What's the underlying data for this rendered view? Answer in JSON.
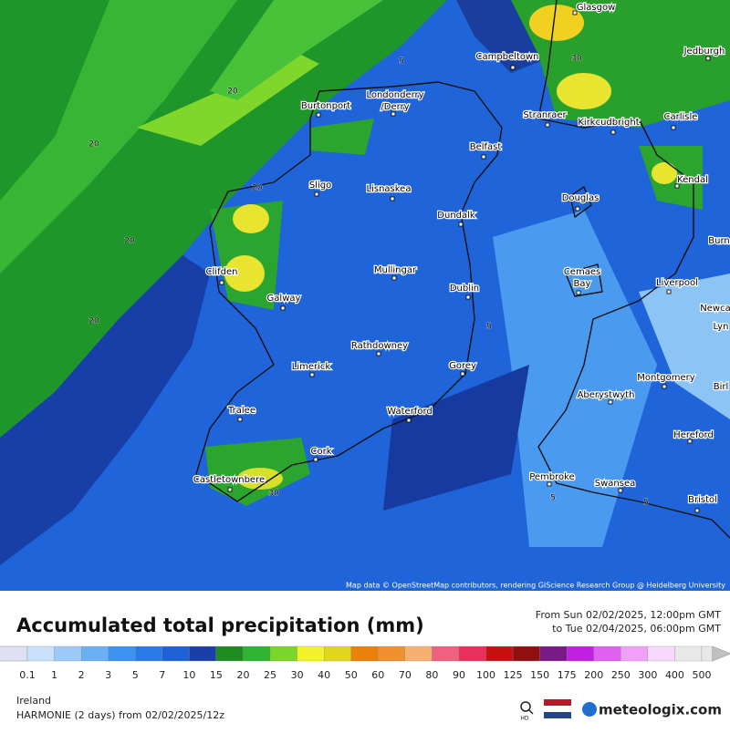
{
  "header": {
    "title": "Accumulated total precipitation (mm)",
    "period_from": "From Sun 02/02/2025, 12:00pm GMT",
    "period_to": "to Tue 02/04/2025, 06:00pm GMT"
  },
  "map": {
    "places": [
      "Glasgow",
      "Campbeltown",
      "Jedburgh",
      "Londonderry",
      "/Derry",
      "Burtonport",
      "Stranraer",
      "Kirkcudbright",
      "Carlisle",
      "Belfast",
      "Sligo",
      "Lisnaskea",
      "Douglas",
      "Kendal",
      "Dundalk",
      "Burn",
      "Clifden",
      "Mullingar",
      "Cemaes",
      "Bay",
      "Liverpool",
      "Galway",
      "Dublin",
      "Newca",
      "Lyn",
      "Rathdowney",
      "Limerick",
      "Gorey",
      "Montgomery",
      "Birl",
      "Aberystwyth",
      "Tralee",
      "Waterford",
      "Hereford",
      "Cork",
      "Castletownbere",
      "Pembroke",
      "Swansea",
      "Bristol"
    ],
    "contour_labels": [
      "20",
      "20",
      "20",
      "20",
      "20",
      "30",
      "5",
      "5",
      "5",
      "5",
      "30"
    ],
    "attribution": "Map data © OpenStreetMap contributors, rendering GIScience Research Group @ Heidelberg University"
  },
  "legend": {
    "labels": [
      0.1,
      1,
      2,
      3,
      5,
      7,
      10,
      15,
      20,
      25,
      30,
      40,
      50,
      60,
      70,
      80,
      90,
      100,
      125,
      150,
      175,
      200,
      250,
      300,
      400,
      500
    ],
    "colors": [
      "#e0e0f4",
      "#c8e0fb",
      "#9ccaf8",
      "#6ab0f4",
      "#3d92ef",
      "#2a7ae6",
      "#1d63d6",
      "#1a3fa8",
      "#1e8c1e",
      "#2fb52f",
      "#7ad62a",
      "#f2f22a",
      "#e2d61e",
      "#e8820a",
      "#f09030",
      "#f8b070",
      "#f06080",
      "#e8305a",
      "#c81010",
      "#901010",
      "#7a1a8a",
      "#c020e0",
      "#e060f0",
      "#f0a0f8",
      "#f8d8fc",
      "#e8e8e8",
      "#c0c0c0"
    ]
  },
  "footer": {
    "region": "Ireland",
    "model": "HARMONIE (2 days) from  02/02/2025/12z",
    "hd": "HD",
    "brand": "meteologix.com"
  }
}
